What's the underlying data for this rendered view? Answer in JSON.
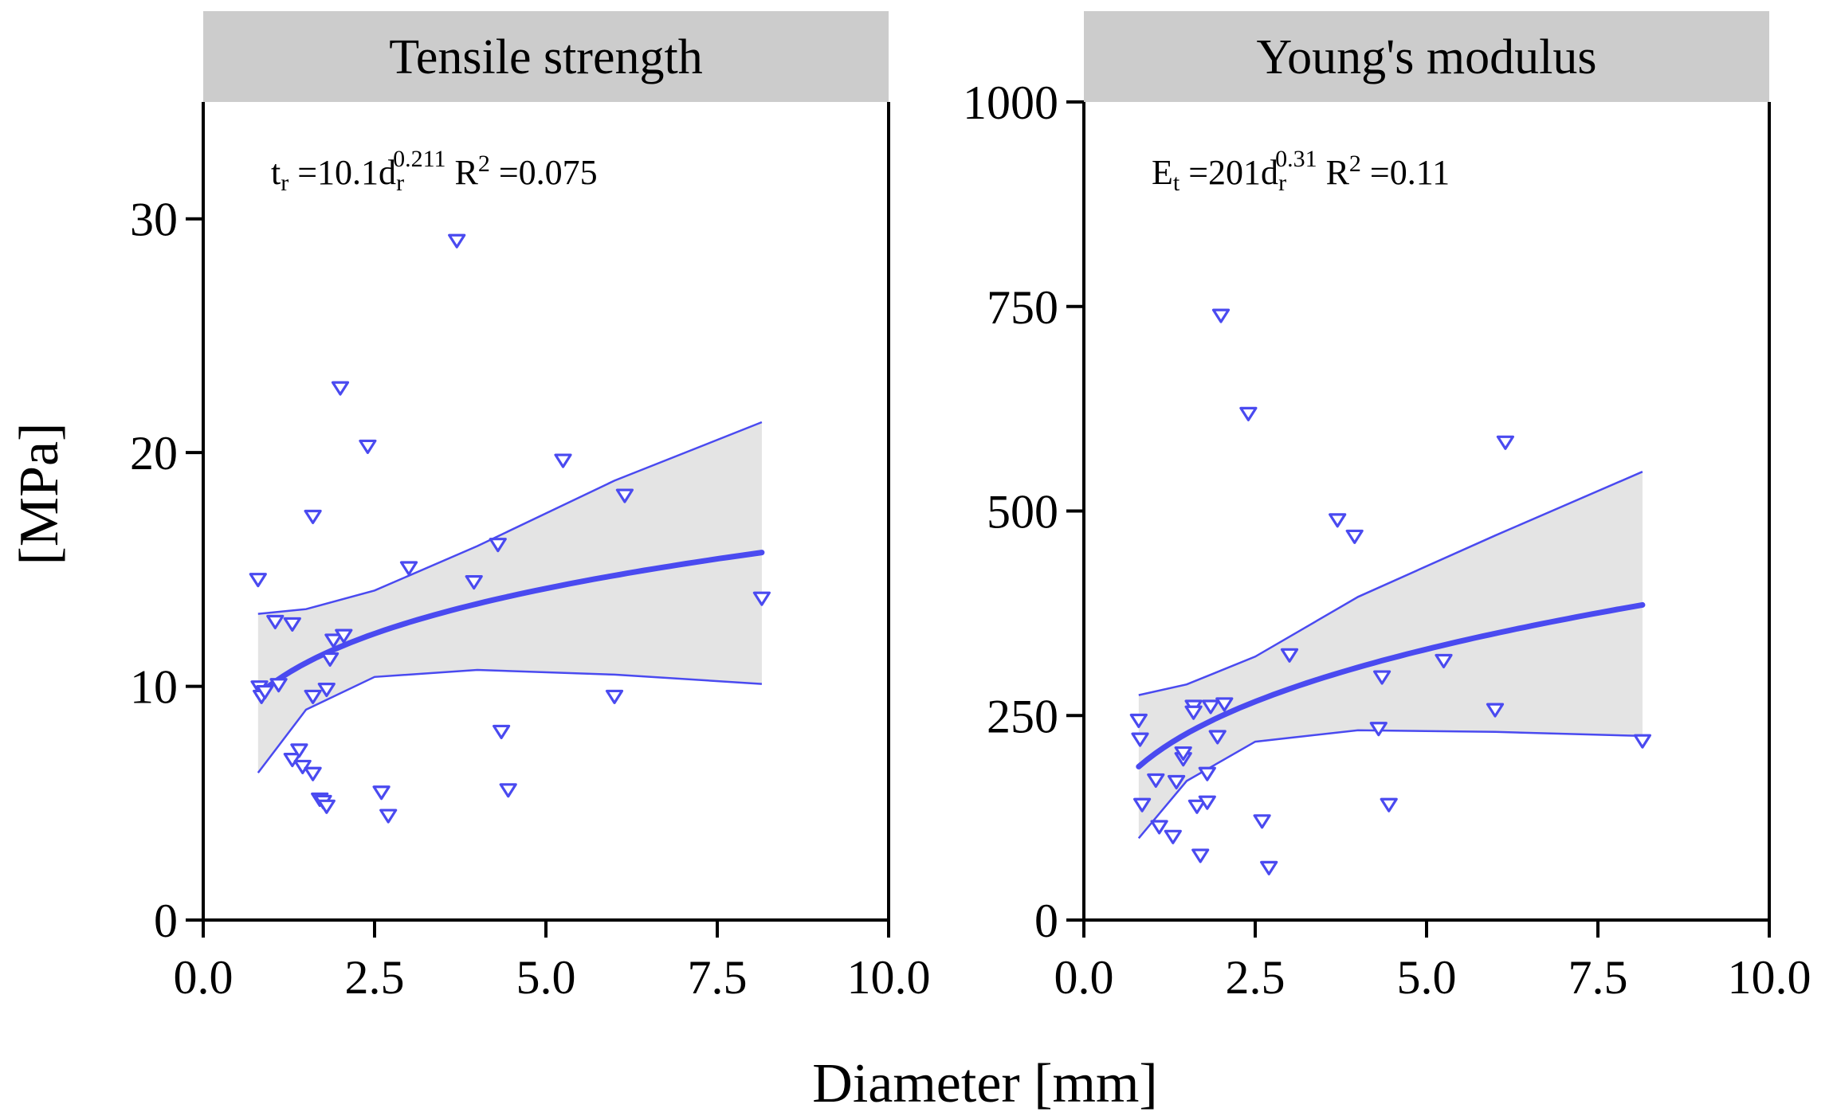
{
  "figure": {
    "ylabel": "[MPa]",
    "xlabel": "Diameter [mm]",
    "colors": {
      "points": "#4a4af0",
      "fit": "#4a4af0",
      "band": "#e4e4e4",
      "strip": "#cccccc",
      "axis": "#000000"
    }
  },
  "chart_data": [
    {
      "type": "scatter",
      "title": "Tensile strength",
      "equation": {
        "lhs": "t",
        "lhs_sub": "r",
        "eq": " =10.1d",
        "var_sub": "r",
        "exp": "0.211",
        "r_label": "R",
        "r_sup": "2",
        "r_value": " =0.075"
      },
      "xlim": [
        0,
        10
      ],
      "ylim": [
        0,
        35
      ],
      "xticks": [
        "0.0",
        "2.5",
        "5.0",
        "7.5",
        "10.0"
      ],
      "xtick_values": [
        0,
        2.5,
        5,
        7.5,
        10
      ],
      "yticks": [
        "0",
        "10",
        "20",
        "30"
      ],
      "ytick_values": [
        0,
        10,
        20,
        30
      ],
      "points": [
        [
          0.8,
          14.6
        ],
        [
          0.82,
          10.0
        ],
        [
          0.85,
          9.6
        ],
        [
          0.9,
          9.8
        ],
        [
          1.05,
          12.8
        ],
        [
          1.1,
          10.1
        ],
        [
          1.3,
          12.7
        ],
        [
          1.3,
          6.9
        ],
        [
          1.4,
          7.3
        ],
        [
          1.45,
          6.6
        ],
        [
          1.6,
          17.3
        ],
        [
          1.6,
          6.3
        ],
        [
          1.6,
          9.6
        ],
        [
          1.7,
          5.2
        ],
        [
          1.75,
          5.1
        ],
        [
          1.8,
          4.9
        ],
        [
          1.8,
          9.9
        ],
        [
          1.85,
          11.2
        ],
        [
          1.9,
          12.0
        ],
        [
          2.0,
          22.8
        ],
        [
          2.05,
          12.2
        ],
        [
          2.4,
          20.3
        ],
        [
          2.6,
          5.5
        ],
        [
          2.7,
          4.5
        ],
        [
          3.0,
          15.1
        ],
        [
          3.7,
          29.1
        ],
        [
          3.95,
          14.5
        ],
        [
          4.3,
          16.1
        ],
        [
          4.35,
          8.1
        ],
        [
          4.45,
          5.6
        ],
        [
          5.25,
          19.7
        ],
        [
          6.0,
          9.6
        ],
        [
          6.15,
          18.2
        ],
        [
          8.15,
          13.8
        ]
      ],
      "fit": {
        "a": 10.1,
        "b": 0.211,
        "x_range": [
          0.8,
          8.15
        ]
      },
      "band_upper": [
        [
          0.8,
          13.1
        ],
        [
          1.5,
          13.3
        ],
        [
          2.5,
          14.1
        ],
        [
          4.0,
          16.0
        ],
        [
          6.0,
          18.8
        ],
        [
          8.15,
          21.3
        ]
      ],
      "band_lower": [
        [
          0.8,
          6.3
        ],
        [
          1.5,
          9.0
        ],
        [
          2.5,
          10.4
        ],
        [
          4.0,
          10.7
        ],
        [
          6.0,
          10.5
        ],
        [
          8.15,
          10.1
        ]
      ]
    },
    {
      "type": "scatter",
      "title": "Young's modulus",
      "equation": {
        "lhs": "E",
        "lhs_sub": "t",
        "eq": " =201d",
        "var_sub": "r",
        "exp": "0.31",
        "r_label": "R",
        "r_sup": "2",
        "r_value": " =0.11"
      },
      "xlim": [
        0,
        10
      ],
      "ylim": [
        0,
        1000
      ],
      "xticks": [
        "0.0",
        "2.5",
        "5.0",
        "7.5",
        "10.0"
      ],
      "xtick_values": [
        0,
        2.5,
        5,
        7.5,
        10
      ],
      "yticks": [
        "0",
        "250",
        "500",
        "750",
        "1000"
      ],
      "ytick_values": [
        0,
        250,
        500,
        750,
        1000
      ],
      "points": [
        [
          0.8,
          245
        ],
        [
          0.82,
          222
        ],
        [
          0.85,
          142
        ],
        [
          1.05,
          172
        ],
        [
          1.1,
          115
        ],
        [
          1.3,
          103
        ],
        [
          1.35,
          170
        ],
        [
          1.45,
          198
        ],
        [
          1.45,
          205
        ],
        [
          1.6,
          262
        ],
        [
          1.6,
          255
        ],
        [
          1.65,
          140
        ],
        [
          1.7,
          80
        ],
        [
          1.8,
          145
        ],
        [
          1.8,
          180
        ],
        [
          1.85,
          262
        ],
        [
          1.95,
          225
        ],
        [
          2.05,
          265
        ],
        [
          2.0,
          740
        ],
        [
          2.4,
          620
        ],
        [
          2.6,
          122
        ],
        [
          2.7,
          65
        ],
        [
          3.0,
          325
        ],
        [
          3.7,
          490
        ],
        [
          3.95,
          470
        ],
        [
          4.3,
          235
        ],
        [
          4.35,
          298
        ],
        [
          4.45,
          142
        ],
        [
          5.25,
          318
        ],
        [
          6.0,
          258
        ],
        [
          6.15,
          585
        ],
        [
          8.15,
          220
        ]
      ],
      "fit": {
        "a": 201,
        "b": 0.31,
        "x_range": [
          0.8,
          8.15
        ]
      },
      "band_upper": [
        [
          0.8,
          275
        ],
        [
          1.5,
          288
        ],
        [
          2.5,
          322
        ],
        [
          4.0,
          395
        ],
        [
          6.0,
          470
        ],
        [
          8.15,
          548
        ]
      ],
      "band_lower": [
        [
          0.8,
          100
        ],
        [
          1.5,
          170
        ],
        [
          2.5,
          218
        ],
        [
          4.0,
          232
        ],
        [
          6.0,
          230
        ],
        [
          8.15,
          225
        ]
      ]
    }
  ]
}
